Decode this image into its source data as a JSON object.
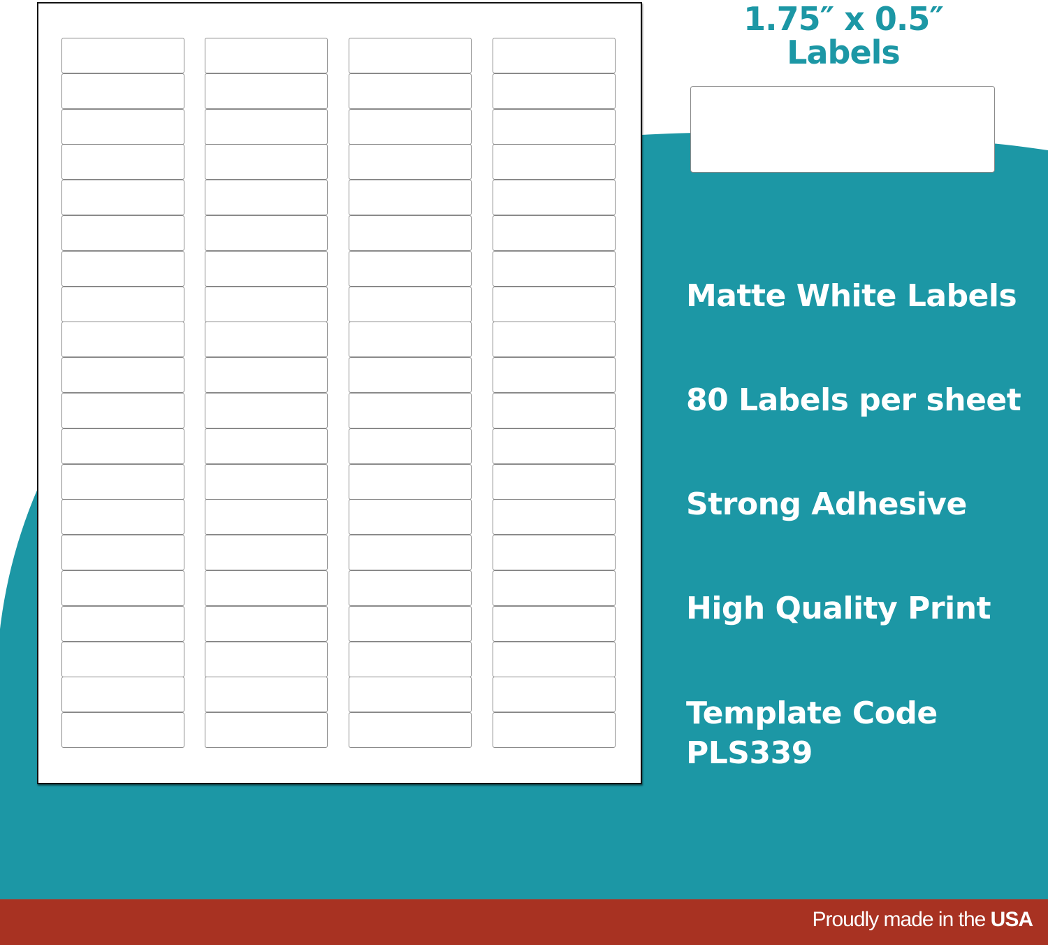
{
  "colors": {
    "accent": "#1c97a5",
    "footer": "#a83222",
    "text_light": "#ffffff"
  },
  "title": {
    "line1": "1.75″ x 0.5″",
    "line2": "Labels"
  },
  "features": [
    "Matte White Labels",
    "80 Labels per sheet",
    "Strong Adhesive",
    "High Quality Print",
    "Template Code",
    "PLS339"
  ],
  "sheet": {
    "columns": 4,
    "rows": 20
  },
  "footer": {
    "prefix": "Proudly made in the ",
    "emphasis": "USA"
  }
}
